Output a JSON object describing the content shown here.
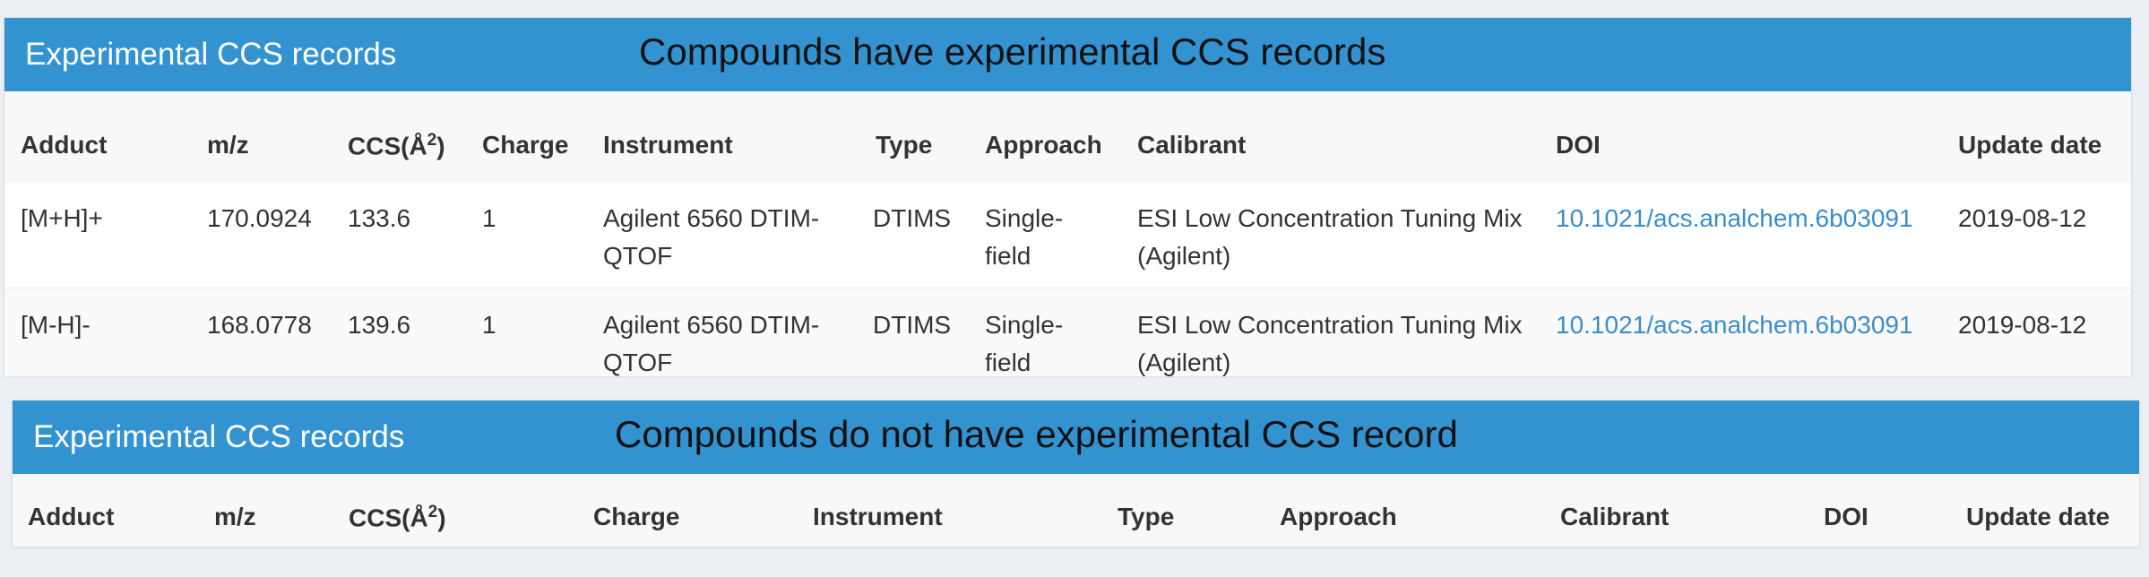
{
  "panels": [
    {
      "title": "Experimental CCS records",
      "note": "Compounds have experimental CCS records",
      "columns": {
        "adduct": "Adduct",
        "mz": "m/z",
        "ccs": "CCS(Å",
        "ccs_sup": "2",
        "ccs_close": ")",
        "charge": "Charge",
        "instrument": "Instrument",
        "type": "Type",
        "approach": "Approach",
        "calibrant": "Calibrant",
        "doi": "DOI",
        "update_date": "Update date"
      },
      "rows": [
        {
          "adduct": "[M+H]+",
          "mz": "170.0924",
          "ccs": "133.6",
          "charge": "1",
          "instrument": "Agilent 6560 DTIM-QTOF",
          "type": "DTIMS",
          "approach": "Single-field",
          "calibrant": "ESI Low Concentration Tuning Mix (Agilent)",
          "doi": "10.1021/acs.analchem.6b03091",
          "update_date": "2019-08-12"
        },
        {
          "adduct": "[M-H]-",
          "mz": "168.0778",
          "ccs": "139.6",
          "charge": "1",
          "instrument": "Agilent 6560 DTIM-QTOF",
          "type": "DTIMS",
          "approach": "Single-field",
          "calibrant": "ESI Low Concentration Tuning Mix (Agilent)",
          "doi": "10.1021/acs.analchem.6b03091",
          "update_date": "2019-08-12"
        }
      ]
    },
    {
      "title": "Experimental CCS records",
      "note": "Compounds do not have experimental CCS record",
      "columns": {
        "adduct": "Adduct",
        "mz": "m/z",
        "ccs": "CCS(Å",
        "ccs_sup": "2",
        "ccs_close": ")",
        "charge": "Charge",
        "instrument": "Instrument",
        "type": "Type",
        "approach": "Approach",
        "calibrant": "Calibrant",
        "doi": "DOI",
        "update_date": "Update date"
      },
      "rows": []
    }
  ],
  "colors": {
    "header_bg": "#3393d1",
    "link": "#3b8dcc",
    "page_bg": "#eceff3"
  }
}
